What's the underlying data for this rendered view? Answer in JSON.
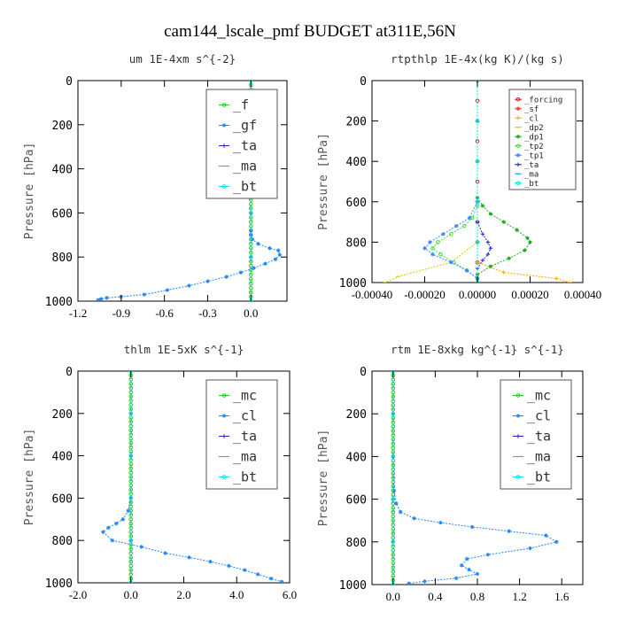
{
  "figure_title": "cam144_lscale_pmf  BUDGET at311E,56N",
  "chart_data": [
    {
      "type": "line",
      "title": "um   1E-4xm s^{-2}",
      "ylabel": "Pressure [hPa]",
      "xlabel": "",
      "ylim": [
        1000,
        0
      ],
      "xlim": [
        -1.2,
        0.25
      ],
      "xticks": [
        -1.2,
        -0.9,
        -0.6,
        -0.3,
        0.0
      ],
      "xtick_labels": [
        "-1.2",
        "-0.9",
        "-0.6",
        "-0.3",
        "0.0"
      ],
      "yticks": [
        0,
        200,
        400,
        600,
        800,
        1000
      ],
      "ytick_labels": [
        "0",
        "200",
        "400",
        "600",
        "800",
        "1000"
      ],
      "legend_position": "top-right",
      "legend_size": "large",
      "series": [
        {
          "name": "_f",
          "color": "#22cc22",
          "marker": "o",
          "x": [
            0,
            0,
            0,
            0,
            0,
            0,
            0,
            0,
            0,
            0,
            0,
            0,
            0,
            0,
            0,
            0,
            0,
            0,
            0,
            0,
            0,
            0,
            0,
            0,
            0,
            0,
            0,
            0,
            0,
            0,
            0,
            0,
            0,
            0,
            0,
            0,
            0,
            0,
            0,
            0,
            0,
            0,
            0,
            0,
            0,
            0,
            0,
            0,
            0,
            0,
            0
          ],
          "y": [
            0,
            20,
            40,
            60,
            80,
            100,
            120,
            140,
            160,
            180,
            200,
            220,
            240,
            260,
            280,
            300,
            320,
            340,
            360,
            380,
            400,
            420,
            440,
            460,
            480,
            500,
            520,
            540,
            560,
            580,
            600,
            620,
            640,
            660,
            680,
            700,
            720,
            740,
            760,
            780,
            800,
            820,
            840,
            860,
            880,
            900,
            920,
            940,
            960,
            980,
            1000
          ]
        },
        {
          "name": "_gf",
          "color": "#2288ff",
          "marker": "*",
          "x": [
            0,
            0,
            0,
            0,
            0,
            0,
            0.01,
            0.05,
            0.13,
            0.19,
            0.2,
            0.17,
            0.1,
            0.02,
            -0.07,
            -0.17,
            -0.3,
            -0.43,
            -0.58,
            -0.74,
            -0.9,
            -1.0,
            -1.04,
            -1.06
          ],
          "y": [
            0,
            200,
            400,
            600,
            680,
            700,
            720,
            740,
            760,
            770,
            790,
            810,
            830,
            850,
            870,
            890,
            910,
            930,
            950,
            970,
            980,
            985,
            990,
            995
          ]
        },
        {
          "name": "_ta",
          "color": "#2222cc",
          "marker": "+",
          "x": [
            0,
            0,
            0,
            0,
            0,
            0
          ],
          "y": [
            0,
            200,
            400,
            600,
            800,
            1000
          ]
        },
        {
          "name": "_ma",
          "color": "#33aaee",
          "marker": "_",
          "x": [
            0,
            0,
            0,
            0,
            0,
            0
          ],
          "y": [
            0,
            200,
            400,
            600,
            800,
            1000
          ]
        },
        {
          "name": "_bt",
          "color": "#00e5e5",
          "marker": "o",
          "x": [
            0,
            0,
            0,
            0,
            0,
            0
          ],
          "y": [
            0,
            200,
            400,
            600,
            800,
            1000
          ]
        }
      ]
    },
    {
      "type": "line",
      "title": "rtpthlp   1E-4x(kg K)/(kg s)",
      "ylabel": "Pressure [hPa]",
      "xlabel": "",
      "ylim": [
        1000,
        0
      ],
      "xlim": [
        -0.0004,
        0.0004
      ],
      "xticks": [
        -0.0004,
        -0.0002,
        0.0,
        0.0002,
        0.0004
      ],
      "xtick_labels": [
        "-0.00040",
        "-0.00020",
        "0.00000",
        "0.00020",
        "0.00040"
      ],
      "yticks": [
        0,
        200,
        400,
        600,
        800,
        1000
      ],
      "ytick_labels": [
        "0",
        "200",
        "400",
        "600",
        "800",
        "1000"
      ],
      "legend_position": "top-right",
      "legend_size": "small",
      "series": [
        {
          "name": "_forcing",
          "color": "#cc2222",
          "marker": "o",
          "x": [
            0,
            0,
            0,
            0,
            0,
            0,
            0,
            0,
            0,
            0,
            0
          ],
          "y": [
            0,
            100,
            200,
            300,
            400,
            500,
            600,
            700,
            800,
            900,
            1000
          ]
        },
        {
          "name": "_sf",
          "color": "#ee4422",
          "marker": "*",
          "x": [
            0,
            0,
            0,
            0,
            0,
            0
          ],
          "y": [
            0,
            200,
            400,
            600,
            800,
            1000
          ]
        },
        {
          "name": "_cl",
          "color": "#ffaa00",
          "marker": "+",
          "x": [
            0,
            0,
            0,
            0,
            0,
            0,
            0.0001,
            0.0003,
            0.00035
          ],
          "y": [
            0,
            200,
            400,
            600,
            800,
            900,
            950,
            980,
            1000
          ]
        },
        {
          "name": "_dp2",
          "color": "#cccc00",
          "marker": "_",
          "x": [
            0,
            0,
            0,
            0,
            0,
            -0.0001,
            -0.0003,
            -0.00035
          ],
          "y": [
            0,
            200,
            400,
            600,
            800,
            900,
            970,
            1000
          ]
        },
        {
          "name": "_dp1",
          "color": "#22aa22",
          "marker": "*",
          "x": [
            0,
            2e-05,
            5e-05,
            0.0001,
            0.00015,
            0.00019,
            0.0002,
            0.00018,
            0.00012,
            5e-05,
            0.0
          ],
          "y": [
            580,
            620,
            660,
            700,
            740,
            780,
            800,
            840,
            880,
            920,
            960
          ]
        },
        {
          "name": "_tp2",
          "color": "#44dd44",
          "marker": "o",
          "x": [
            0,
            -2e-05,
            -5e-05,
            -0.0001,
            -0.00015,
            -0.00017,
            -0.00014,
            -9e-05,
            -4e-05,
            0.0
          ],
          "y": [
            620,
            680,
            720,
            760,
            800,
            830,
            860,
            900,
            940,
            980
          ]
        },
        {
          "name": "_tp1",
          "color": "#4488ff",
          "marker": "*",
          "x": [
            0,
            -3e-05,
            -8e-05,
            -0.00013,
            -0.00018,
            -0.0002,
            -0.00017,
            -0.0001,
            -4e-05,
            0.0
          ],
          "y": [
            600,
            680,
            720,
            760,
            800,
            830,
            860,
            900,
            940,
            980
          ]
        },
        {
          "name": "_ta",
          "color": "#2222cc",
          "marker": "+",
          "x": [
            0,
            2e-05,
            4e-05,
            5e-05,
            4e-05,
            2e-05,
            0.0
          ],
          "y": [
            700,
            760,
            800,
            830,
            860,
            890,
            930
          ]
        },
        {
          "name": "_ma",
          "color": "#33aaee",
          "marker": "_",
          "x": [
            0,
            0,
            0,
            0,
            0,
            0
          ],
          "y": [
            0,
            200,
            400,
            600,
            800,
            1000
          ]
        },
        {
          "name": "_bt",
          "color": "#00e5e5",
          "marker": "o",
          "x": [
            0,
            0,
            0,
            0,
            0,
            0
          ],
          "y": [
            0,
            200,
            400,
            600,
            800,
            1000
          ]
        }
      ]
    },
    {
      "type": "line",
      "title": "thlm   1E-5xK s^{-1}",
      "ylabel": "Pressure [hPa]",
      "xlabel": "",
      "ylim": [
        1000,
        0
      ],
      "xlim": [
        -2.0,
        6.0
      ],
      "xticks": [
        -2.0,
        0.0,
        2.0,
        4.0,
        6.0
      ],
      "xtick_labels": [
        "-2.0",
        "0.0",
        "2.0",
        "4.0",
        "6.0"
      ],
      "yticks": [
        0,
        200,
        400,
        600,
        800,
        1000
      ],
      "ytick_labels": [
        "0",
        "200",
        "400",
        "600",
        "800",
        "1000"
      ],
      "legend_position": "top-right",
      "legend_size": "large",
      "series": [
        {
          "name": "_mc",
          "color": "#22cc22",
          "marker": "o",
          "x": [
            0,
            0,
            0,
            0,
            0,
            0,
            0,
            0,
            0,
            0,
            0,
            0,
            0,
            0,
            0,
            0,
            0,
            0,
            0,
            0,
            0,
            0,
            0,
            0,
            0,
            0,
            0,
            0,
            0,
            0,
            0,
            0,
            0,
            0,
            0,
            0,
            0,
            0,
            0,
            0,
            0,
            0,
            0,
            0,
            0,
            0,
            0,
            0,
            0,
            0,
            0
          ],
          "y": [
            0,
            20,
            40,
            60,
            80,
            100,
            120,
            140,
            160,
            180,
            200,
            220,
            240,
            260,
            280,
            300,
            320,
            340,
            360,
            380,
            400,
            420,
            440,
            460,
            480,
            500,
            520,
            540,
            560,
            580,
            600,
            620,
            640,
            660,
            680,
            700,
            720,
            740,
            760,
            780,
            800,
            820,
            840,
            860,
            880,
            900,
            920,
            940,
            960,
            980,
            1000
          ]
        },
        {
          "name": "_cl",
          "color": "#2288ff",
          "marker": "*",
          "x": [
            0,
            0,
            0,
            -0.1,
            -0.3,
            -0.55,
            -0.85,
            -1.05,
            -0.7,
            0.4,
            1.3,
            2.2,
            3.0,
            3.7,
            4.3,
            4.8,
            5.3,
            5.7
          ],
          "y": [
            0,
            400,
            600,
            660,
            700,
            720,
            740,
            760,
            800,
            830,
            860,
            880,
            900,
            920,
            940,
            960,
            980,
            995
          ]
        },
        {
          "name": "_ta",
          "color": "#2222cc",
          "marker": "+",
          "x": [
            0,
            0,
            0,
            0,
            0,
            0
          ],
          "y": [
            0,
            200,
            400,
            600,
            800,
            1000
          ]
        },
        {
          "name": "_ma",
          "color": "#33aaee",
          "marker": "_",
          "x": [
            0,
            0,
            0,
            0,
            0,
            0
          ],
          "y": [
            0,
            200,
            400,
            600,
            800,
            1000
          ]
        },
        {
          "name": "_bt",
          "color": "#00e5e5",
          "marker": "o",
          "x": [
            0,
            0,
            0,
            0,
            0,
            0
          ],
          "y": [
            0,
            200,
            400,
            600,
            800,
            1000
          ]
        }
      ]
    },
    {
      "type": "line",
      "title": "rtm   1E-8xkg kg^{-1} s^{-1}",
      "ylabel": "Pressure [hPa]",
      "xlabel": "",
      "ylim": [
        1000,
        0
      ],
      "xlim": [
        -0.2,
        1.8
      ],
      "xticks": [
        0.0,
        0.4,
        0.8,
        1.2,
        1.6
      ],
      "xtick_labels": [
        "0.0",
        "0.4",
        "0.8",
        "1.2",
        "1.6"
      ],
      "yticks": [
        0,
        200,
        400,
        600,
        800,
        1000
      ],
      "ytick_labels": [
        "0",
        "200",
        "400",
        "600",
        "800",
        "1000"
      ],
      "legend_position": "top-right",
      "legend_size": "large",
      "series": [
        {
          "name": "_mc",
          "color": "#22cc22",
          "marker": "o",
          "x": [
            0,
            0,
            0,
            0,
            0,
            0,
            0,
            0,
            0,
            0,
            0,
            0,
            0,
            0,
            0,
            0,
            0,
            0,
            0,
            0,
            0,
            0,
            0,
            0,
            0,
            0,
            0,
            0,
            0,
            0,
            0,
            0,
            0,
            0,
            0,
            0,
            0,
            0,
            0,
            0,
            0,
            0,
            0,
            0,
            0,
            0,
            0,
            0,
            0,
            0,
            0
          ],
          "y": [
            0,
            20,
            40,
            60,
            80,
            100,
            120,
            140,
            160,
            180,
            200,
            220,
            240,
            260,
            280,
            300,
            320,
            340,
            360,
            380,
            400,
            420,
            440,
            460,
            480,
            500,
            520,
            540,
            560,
            580,
            600,
            620,
            640,
            660,
            680,
            700,
            720,
            740,
            760,
            780,
            800,
            820,
            840,
            860,
            880,
            900,
            920,
            940,
            960,
            980,
            1000
          ]
        },
        {
          "name": "_cl",
          "color": "#2288ff",
          "marker": "*",
          "x": [
            0,
            0,
            0.01,
            0.03,
            0.07,
            0.2,
            0.45,
            0.75,
            1.1,
            1.45,
            1.55,
            1.3,
            0.9,
            0.7,
            0.65,
            0.72,
            0.8,
            0.6,
            0.3,
            0.15
          ],
          "y": [
            0,
            400,
            560,
            620,
            660,
            690,
            710,
            730,
            750,
            770,
            800,
            830,
            860,
            880,
            910,
            930,
            950,
            970,
            985,
            995
          ]
        },
        {
          "name": "_ta",
          "color": "#2222cc",
          "marker": "+",
          "x": [
            0,
            0,
            0,
            0,
            0,
            0
          ],
          "y": [
            0,
            200,
            400,
            600,
            800,
            1000
          ]
        },
        {
          "name": "_ma",
          "color": "#33aaee",
          "marker": "_",
          "x": [
            0,
            0,
            0,
            0,
            0,
            0
          ],
          "y": [
            0,
            200,
            400,
            600,
            800,
            1000
          ]
        },
        {
          "name": "_bt",
          "color": "#00e5e5",
          "marker": "o",
          "x": [
            0,
            0,
            0,
            0,
            0,
            0
          ],
          "y": [
            0,
            200,
            400,
            600,
            800,
            1000
          ]
        }
      ]
    }
  ]
}
